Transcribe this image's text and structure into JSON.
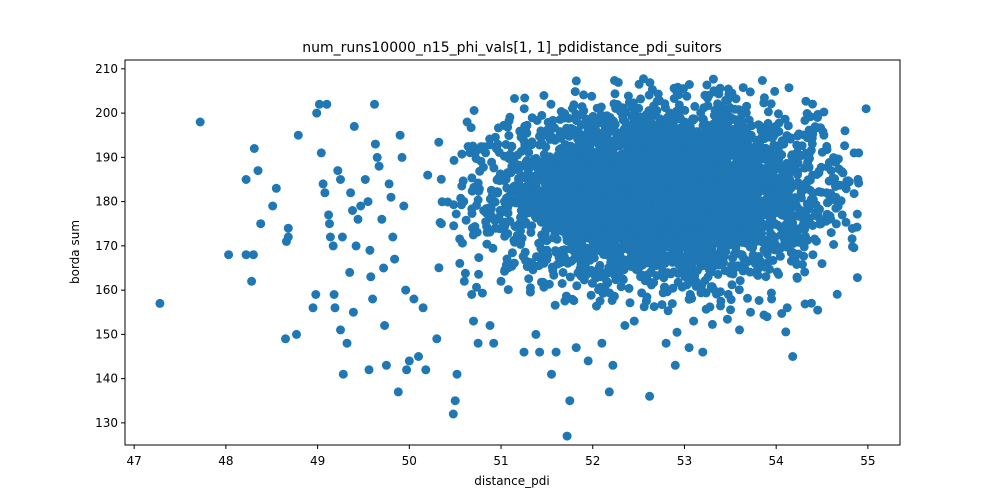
{
  "chart_data": {
    "type": "scatter",
    "title": "num_runs10000_n15_phi_vals[1, 1]_pdidistance_pdi_suitors",
    "xlabel": "distance_pdi",
    "ylabel": "borda sum",
    "xlim": [
      46.9,
      55.35
    ],
    "ylim": [
      125,
      212
    ],
    "xticks": [
      47,
      48,
      49,
      50,
      51,
      52,
      53,
      54,
      55
    ],
    "yticks": [
      130,
      140,
      150,
      160,
      170,
      180,
      190,
      200,
      210
    ],
    "grid": false,
    "legend": "none",
    "marker_color": "#1f77b4",
    "series": [
      {
        "points": [
          [
            47.28,
            157
          ],
          [
            47.72,
            198
          ],
          [
            48.03,
            168
          ],
          [
            48.22,
            185
          ],
          [
            48.28,
            162
          ],
          [
            48.31,
            192
          ],
          [
            48.35,
            187
          ],
          [
            48.38,
            175
          ],
          [
            48.51,
            179
          ],
          [
            48.55,
            183
          ],
          [
            48.22,
            168
          ],
          [
            48.3,
            168
          ],
          [
            48.68,
            174
          ],
          [
            48.66,
            171
          ],
          [
            48.68,
            172
          ],
          [
            48.77,
            150
          ],
          [
            48.65,
            149
          ],
          [
            48.79,
            195
          ],
          [
            48.95,
            156
          ],
          [
            48.98,
            159
          ],
          [
            48.99,
            200
          ],
          [
            49.02,
            202
          ],
          [
            49.04,
            191
          ],
          [
            49.06,
            184
          ],
          [
            49.08,
            182
          ],
          [
            49.12,
            177
          ],
          [
            49.13,
            175
          ],
          [
            49.14,
            172
          ],
          [
            49.17,
            170
          ],
          [
            49.18,
            159
          ],
          [
            49.19,
            156
          ],
          [
            49.22,
            187
          ],
          [
            49.1,
            202
          ],
          [
            49.25,
            185
          ],
          [
            49.27,
            172
          ],
          [
            49.28,
            141
          ],
          [
            49.32,
            148
          ],
          [
            49.25,
            151
          ],
          [
            49.35,
            164
          ],
          [
            49.36,
            182
          ],
          [
            49.38,
            178
          ],
          [
            49.39,
            155
          ],
          [
            49.4,
            197
          ],
          [
            49.42,
            170
          ],
          [
            49.44,
            176
          ],
          [
            49.47,
            179
          ],
          [
            49.52,
            185
          ],
          [
            49.55,
            180
          ],
          [
            49.57,
            169
          ],
          [
            49.58,
            163
          ],
          [
            49.6,
            158
          ],
          [
            49.56,
            142
          ],
          [
            49.62,
            202
          ],
          [
            49.63,
            193
          ],
          [
            49.65,
            190
          ],
          [
            49.67,
            188
          ],
          [
            49.7,
            176
          ],
          [
            49.72,
            165
          ],
          [
            49.73,
            152
          ],
          [
            49.75,
            143
          ],
          [
            49.78,
            184
          ],
          [
            49.8,
            181
          ],
          [
            49.82,
            172
          ],
          [
            49.84,
            167
          ],
          [
            49.88,
            137
          ],
          [
            49.9,
            195
          ],
          [
            49.92,
            190
          ],
          [
            49.94,
            179
          ],
          [
            49.96,
            160
          ],
          [
            49.97,
            142
          ],
          [
            50.0,
            144
          ],
          [
            50.05,
            158
          ],
          [
            50.1,
            145
          ],
          [
            50.15,
            156
          ],
          [
            50.18,
            142
          ],
          [
            50.2,
            186
          ],
          [
            50.3,
            149
          ],
          [
            50.35,
            175
          ],
          [
            50.48,
            132
          ],
          [
            50.5,
            135
          ],
          [
            50.52,
            141
          ],
          [
            50.6,
            162
          ],
          [
            50.63,
            198
          ],
          [
            50.68,
            159
          ],
          [
            50.7,
            153
          ],
          [
            50.75,
            148
          ],
          [
            50.88,
            152
          ],
          [
            50.92,
            148
          ],
          [
            51.0,
            162
          ],
          [
            51.25,
            146
          ],
          [
            51.38,
            150
          ],
          [
            51.42,
            146
          ],
          [
            51.55,
            141
          ],
          [
            51.6,
            146
          ],
          [
            51.72,
            127
          ],
          [
            51.75,
            135
          ],
          [
            51.82,
            147
          ],
          [
            51.95,
            144
          ],
          [
            52.1,
            148
          ],
          [
            52.18,
            137
          ],
          [
            52.22,
            143
          ],
          [
            52.35,
            152
          ],
          [
            52.62,
            136
          ],
          [
            52.8,
            148
          ],
          [
            52.9,
            143
          ],
          [
            53.05,
            147
          ],
          [
            53.1,
            153
          ],
          [
            53.2,
            146
          ],
          [
            53.6,
            151
          ],
          [
            53.72,
            155
          ],
          [
            53.9,
            154
          ],
          [
            54.18,
            145
          ],
          [
            54.12,
            156
          ],
          [
            53.95,
            158
          ],
          [
            54.3,
            175
          ],
          [
            54.4,
            168
          ],
          [
            54.5,
            166
          ],
          [
            54.6,
            173
          ],
          [
            54.72,
            177
          ],
          [
            54.85,
            191
          ],
          [
            54.9,
            191
          ],
          [
            54.98,
            201
          ],
          [
            54.75,
            196
          ],
          [
            54.6,
            187
          ],
          [
            54.52,
            195
          ],
          [
            54.45,
            199
          ],
          [
            54.55,
            182
          ],
          [
            54.65,
            181
          ]
        ]
      }
    ]
  }
}
